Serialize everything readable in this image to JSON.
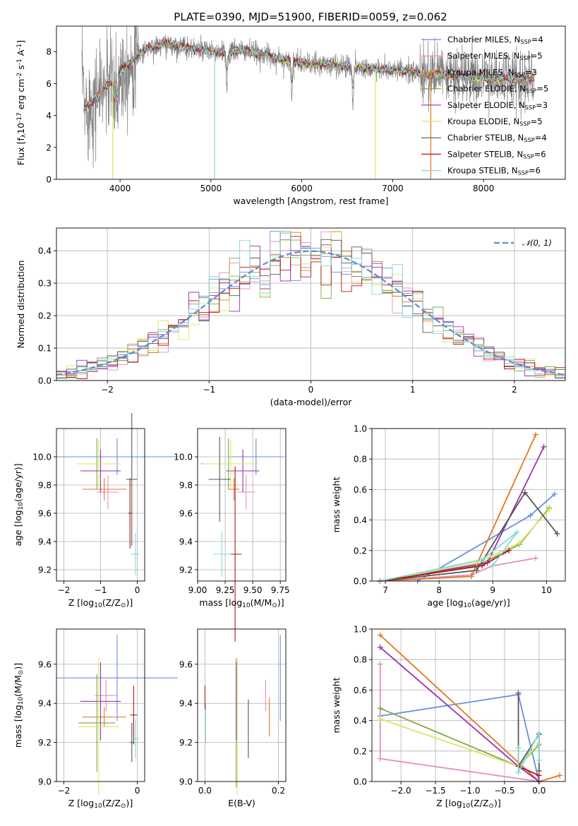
{
  "title": "PLATE=0390, MJD=51900, FIBERID=0059, z=0.062",
  "colors": {
    "Chabrier MILES": "#6a8fdc",
    "Salpeter MILES": "#e58cc0",
    "Kroupa MILES": "#e07820",
    "Chabrier ELODIE": "#7ea84a",
    "Salpeter ELODIE": "#9b30b0",
    "Kroupa ELODIE": "#d8e860",
    "Chabrier STELIB": "#555555",
    "Salpeter STELIB": "#b01818",
    "Kroupa STELIB": "#86d8d8"
  },
  "legend1": [
    "Chabrier MILES, N$_{SSP}$=4",
    "Salpeter MILES, N$_{SSP}$=5",
    "Kroupa MILES, N$_{SSP}$=3",
    "Chabrier ELODIE, N$_{SSP}$=5",
    "Salpeter ELODIE, N$_{SSP}$=3",
    "Kroupa ELODIE, N$_{SSP}$=5",
    "Chabrier STELIB, N$_{SSP}$=4",
    "Salpeter STELIB, N$_{SSP}$=6",
    "Kroupa STELIB, N$_{SSP}$=6"
  ],
  "legend2": [
    "𝒩(0, 1)"
  ],
  "chart_data": [
    {
      "type": "line",
      "title": "PLATE=0390, MJD=51900, FIBERID=0059, z=0.062",
      "xlabel": "wavelength [Angstrom, rest frame]",
      "ylabel": "Flux [f$_\\lambda$10$^{-17}$ erg cm$^{-2}$ s$^{-1}$ A$^{-1}$]",
      "xlim": [
        3300,
        8900
      ],
      "ylim": [
        0,
        9.6
      ],
      "xticks": [
        4000,
        5000,
        6000,
        7000,
        8000
      ],
      "yticks": [
        0,
        2,
        4,
        6,
        8
      ],
      "grid": false,
      "legend": "top-right",
      "continuum": [
        [
          3600,
          4.4
        ],
        [
          3700,
          4.9
        ],
        [
          3800,
          5.6
        ],
        [
          3900,
          6.1
        ],
        [
          4000,
          6.7
        ],
        [
          4100,
          7.3
        ],
        [
          4200,
          7.8
        ],
        [
          4300,
          8.2
        ],
        [
          4400,
          8.3
        ],
        [
          4500,
          8.5
        ],
        [
          4600,
          8.4
        ],
        [
          4700,
          8.3
        ],
        [
          4800,
          8.2
        ],
        [
          4900,
          8.1
        ],
        [
          5000,
          8.0
        ],
        [
          5100,
          7.9
        ],
        [
          5200,
          7.9
        ],
        [
          5300,
          8.1
        ],
        [
          5400,
          8.0
        ],
        [
          5500,
          7.9
        ],
        [
          5600,
          7.8
        ],
        [
          5700,
          7.6
        ],
        [
          5800,
          7.5
        ],
        [
          5900,
          7.4
        ],
        [
          6000,
          7.3
        ],
        [
          6100,
          7.2
        ],
        [
          6200,
          7.2
        ],
        [
          6300,
          7.2
        ],
        [
          6400,
          7.1
        ],
        [
          6500,
          7.1
        ],
        [
          6600,
          7.0
        ],
        [
          6700,
          7.0
        ],
        [
          6800,
          6.9
        ],
        [
          6900,
          6.9
        ],
        [
          7000,
          6.8
        ],
        [
          7100,
          6.8
        ],
        [
          7200,
          6.7
        ],
        [
          7300,
          6.7
        ],
        [
          7400,
          6.6
        ],
        [
          7500,
          6.6
        ],
        [
          7600,
          6.5
        ],
        [
          7700,
          6.5
        ],
        [
          7800,
          6.5
        ],
        [
          7900,
          6.4
        ],
        [
          8000,
          6.4
        ],
        [
          8100,
          6.3
        ],
        [
          8200,
          6.3
        ],
        [
          8300,
          6.3
        ],
        [
          8400,
          6.3
        ],
        [
          8500,
          6.3
        ]
      ],
      "absorption_lines": [
        3934,
        3969,
        5175,
        5890,
        6563
      ]
    },
    {
      "type": "bar",
      "xlabel": "(data-model)/error",
      "ylabel": "Normed distribution",
      "xlim": [
        -2.5,
        2.5
      ],
      "ylim": [
        0,
        0.47
      ],
      "xticks": [
        -2,
        -1,
        0,
        1,
        2
      ],
      "yticks": [
        0.0,
        0.1,
        0.2,
        0.3,
        0.4
      ],
      "grid": true,
      "legend": "top-right",
      "bin_width": 0.1,
      "reference": {
        "name": "𝒩(0, 1)",
        "mean": 0,
        "sigma": 1
      }
    },
    {
      "type": "scatter",
      "xlabel": "Z [log$_{10}$(Z/Z$_\\odot$)]",
      "ylabel": "age  [log$_{10}$(age/yr)]",
      "xlim": [
        -2.2,
        0.2
      ],
      "ylim": [
        9.12,
        10.2
      ],
      "xticks": [
        -2,
        -1,
        0
      ],
      "yticks": [
        9.2,
        9.4,
        9.6,
        9.8,
        10.0
      ],
      "grid": true,
      "points": [
        {
          "model": "Chabrier MILES",
          "x": -0.55,
          "y": 10.0,
          "xerr": 1.65,
          "yerr": 0.13
        },
        {
          "model": "Salpeter MILES",
          "x": -0.8,
          "y": 9.75,
          "xerr": 0.3,
          "yerr": 0.12
        },
        {
          "model": "Kroupa MILES",
          "x": -0.9,
          "y": 9.77,
          "xerr": 0.6,
          "yerr": 0.08
        },
        {
          "model": "Chabrier ELODIE",
          "x": -1.1,
          "y": 9.95,
          "xerr": 0.5,
          "yerr": 0.18
        },
        {
          "model": "Salpeter ELODIE",
          "x": -1.0,
          "y": 9.9,
          "xerr": 0.55,
          "yerr": 0.15
        },
        {
          "model": "Kroupa ELODIE",
          "x": -1.05,
          "y": 9.95,
          "xerr": 0.6,
          "yerr": 0.17
        },
        {
          "model": "Chabrier STELIB",
          "x": -0.15,
          "y": 9.84,
          "xerr": 0.15,
          "yerr": 0.47
        },
        {
          "model": "Salpeter STELIB",
          "x": -0.2,
          "y": 9.6,
          "xerr": 0.05,
          "yerr": 0.25
        },
        {
          "model": "Kroupa STELIB",
          "x": -0.05,
          "y": 9.31,
          "xerr": 0.12,
          "yerr": 0.15
        }
      ]
    },
    {
      "type": "scatter",
      "xlabel": "mass [log$_{10}$(M/M$_\\odot$)]",
      "ylabel": "",
      "xlim": [
        9.0,
        9.8
      ],
      "ylim": [
        9.12,
        10.2
      ],
      "xticks": [
        9.0,
        9.25,
        9.5,
        9.75
      ],
      "yticks": [
        9.2,
        9.4,
        9.6,
        9.8,
        10.0
      ],
      "grid": true,
      "points": [
        {
          "model": "Chabrier MILES",
          "x": 9.53,
          "y": 10.0,
          "xerr": 0.25,
          "yerr": 0.13
        },
        {
          "model": "Salpeter MILES",
          "x": 9.44,
          "y": 9.75,
          "xerr": 0.08,
          "yerr": 0.12
        },
        {
          "model": "Kroupa MILES",
          "x": 9.33,
          "y": 9.77,
          "xerr": 0.05,
          "yerr": 0.08
        },
        {
          "model": "Chabrier ELODIE",
          "x": 9.28,
          "y": 9.95,
          "xerr": 0.25,
          "yerr": 0.18
        },
        {
          "model": "Salpeter ELODIE",
          "x": 9.41,
          "y": 9.9,
          "xerr": 0.15,
          "yerr": 0.15
        },
        {
          "model": "Kroupa ELODIE",
          "x": 9.3,
          "y": 9.95,
          "xerr": 0.25,
          "yerr": 0.17
        },
        {
          "model": "Chabrier STELIB",
          "x": 9.2,
          "y": 9.84,
          "xerr": 0.1,
          "yerr": 0.3
        },
        {
          "model": "Salpeter STELIB",
          "x": 9.34,
          "y": 9.31,
          "xerr": 0.06,
          "yerr": 0.62
        },
        {
          "model": "Kroupa STELIB",
          "x": 9.22,
          "y": 9.31,
          "xerr": 0.08,
          "yerr": 0.16
        }
      ]
    },
    {
      "type": "line",
      "xlabel": "age  [log$_{10}$(age/yr)]",
      "ylabel": "mass weight",
      "xlim": [
        6.75,
        10.35
      ],
      "ylim": [
        0,
        1.0
      ],
      "xticks": [
        7,
        8,
        9,
        10
      ],
      "yticks": [
        0.0,
        0.2,
        0.4,
        0.6,
        0.8,
        1.0
      ],
      "grid": true,
      "series": [
        {
          "model": "Chabrier MILES",
          "x": [
            7.6,
            9.7,
            10.15
          ],
          "y": [
            0.0,
            0.43,
            0.57
          ]
        },
        {
          "model": "Salpeter MILES",
          "x": [
            6.9,
            8.6,
            9.0,
            9.8
          ],
          "y": [
            0.0,
            0.04,
            0.1,
            0.15
          ]
        },
        {
          "model": "Kroupa MILES",
          "x": [
            6.9,
            8.6,
            9.8
          ],
          "y": [
            0.0,
            0.03,
            0.96
          ]
        },
        {
          "model": "Chabrier ELODIE",
          "x": [
            6.9,
            8.7,
            9.5,
            10.05
          ],
          "y": [
            0.0,
            0.1,
            0.24,
            0.48
          ]
        },
        {
          "model": "Salpeter ELODIE",
          "x": [
            6.9,
            8.9,
            9.95
          ],
          "y": [
            0.0,
            0.12,
            0.88
          ]
        },
        {
          "model": "Kroupa ELODIE",
          "x": [
            6.9,
            8.7,
            9.5,
            10.05
          ],
          "y": [
            0.0,
            0.12,
            0.25,
            0.47
          ]
        },
        {
          "model": "Chabrier STELIB",
          "x": [
            6.9,
            8.7,
            9.6,
            10.2
          ],
          "y": [
            0.0,
            0.07,
            0.58,
            0.31
          ]
        },
        {
          "model": "Salpeter STELIB",
          "x": [
            6.9,
            8.8,
            9.3
          ],
          "y": [
            0.0,
            0.1,
            0.2
          ]
        },
        {
          "model": "Kroupa STELIB",
          "x": [
            6.9,
            8.8,
            9.45,
            9.0
          ],
          "y": [
            0.0,
            0.14,
            0.32,
            0.1
          ]
        }
      ]
    },
    {
      "type": "scatter",
      "xlabel": "Z [log$_{10}$(Z/Z$_\\odot$)]",
      "ylabel": "mass [log$_{10}$(M/M$_\\odot$)]",
      "xlim": [
        -2.2,
        0.2
      ],
      "ylim": [
        9.0,
        9.78
      ],
      "xticks": [
        -2,
        0
      ],
      "yticks": [
        9.0,
        9.2,
        9.4,
        9.6
      ],
      "grid": true,
      "points": [
        {
          "model": "Chabrier MILES",
          "x": -0.55,
          "y": 9.53,
          "xerr": 1.65,
          "yerr": 0.22
        },
        {
          "model": "Salpeter MILES",
          "x": -0.85,
          "y": 9.44,
          "xerr": 0.3,
          "yerr": 0.08
        },
        {
          "model": "Kroupa MILES",
          "x": -0.9,
          "y": 9.33,
          "xerr": 0.6,
          "yerr": 0.05
        },
        {
          "model": "Chabrier ELODIE",
          "x": -1.1,
          "y": 9.3,
          "xerr": 0.5,
          "yerr": 0.25
        },
        {
          "model": "Salpeter ELODIE",
          "x": -1.0,
          "y": 9.41,
          "xerr": 0.55,
          "yerr": 0.2
        },
        {
          "model": "Kroupa ELODIE",
          "x": -1.05,
          "y": 9.28,
          "xerr": 0.55,
          "yerr": 0.35
        },
        {
          "model": "Chabrier STELIB",
          "x": -0.15,
          "y": 9.2,
          "xerr": 0.05,
          "yerr": 0.1
        },
        {
          "model": "Salpeter STELIB",
          "x": -0.1,
          "y": 9.34,
          "xerr": 0.1,
          "yerr": 0.15
        },
        {
          "model": "Kroupa STELIB",
          "x": -0.05,
          "y": 9.22,
          "xerr": 0.1,
          "yerr": 0.1
        }
      ]
    },
    {
      "type": "scatter",
      "xlabel": "E(B-V)",
      "ylabel": "",
      "xlim": [
        -0.02,
        0.22
      ],
      "ylim": [
        9.0,
        9.78
      ],
      "xticks": [
        0.0,
        0.2
      ],
      "yticks": [
        9.0,
        9.2,
        9.4,
        9.6
      ],
      "grid": true,
      "points": [
        {
          "model": "Chabrier MILES",
          "x": 0.205,
          "y": 9.53,
          "yerr": 0.22
        },
        {
          "model": "Salpeter MILES",
          "x": 0.165,
          "y": 9.44,
          "yerr": 0.08
        },
        {
          "model": "Kroupa MILES",
          "x": 0.175,
          "y": 9.33,
          "yerr": 0.1
        },
        {
          "model": "Chabrier ELODIE",
          "x": 0.085,
          "y": 9.3,
          "yerr": 0.33
        },
        {
          "model": "Salpeter ELODIE",
          "x": 0.085,
          "y": 9.41,
          "yerr": 0.2
        },
        {
          "model": "Kroupa ELODIE",
          "x": 0.088,
          "y": 9.28,
          "yerr": 0.35
        },
        {
          "model": "Chabrier STELIB",
          "x": 0.118,
          "y": 9.27,
          "yerr": 0.15
        },
        {
          "model": "Salpeter STELIB",
          "x": 0.0,
          "y": 9.43,
          "yerr": 0.06
        },
        {
          "model": "Kroupa STELIB",
          "x": 0.002,
          "y": 9.3,
          "yerr": 0.1
        }
      ]
    },
    {
      "type": "line",
      "xlabel": "Z [log$_{10}$(Z/Z$_\\odot$)]",
      "ylabel": "mass weight",
      "xlim": [
        -2.42,
        0.38
      ],
      "ylim": [
        0,
        1.0
      ],
      "xticks": [
        -2.0,
        -1.5,
        -1.0,
        -0.5,
        0.0
      ],
      "yticks": [
        0.0,
        0.2,
        0.4,
        0.6,
        0.8,
        1.0
      ],
      "grid": true,
      "series": [
        {
          "model": "Chabrier MILES",
          "x": [
            -2.3,
            -0.3,
            0.0
          ],
          "y": [
            0.43,
            0.57,
            0.0
          ]
        },
        {
          "model": "Salpeter MILES",
          "x": [
            -2.3,
            -2.3,
            0.0
          ],
          "y": [
            0.77,
            0.15,
            0.0
          ]
        },
        {
          "model": "Kroupa MILES",
          "x": [
            -2.3,
            0.0,
            0.3
          ],
          "y": [
            0.96,
            0.0,
            0.04
          ]
        },
        {
          "model": "Chabrier ELODIE",
          "x": [
            -2.3,
            -0.3,
            0.0
          ],
          "y": [
            0.48,
            0.1,
            0.24
          ]
        },
        {
          "model": "Salpeter ELODIE",
          "x": [
            -2.3,
            -0.3,
            0.0
          ],
          "y": [
            0.88,
            0.1,
            0.0
          ]
        },
        {
          "model": "Kroupa ELODIE",
          "x": [
            -2.3,
            -0.3,
            0.0
          ],
          "y": [
            0.41,
            0.1,
            0.25
          ]
        },
        {
          "model": "Chabrier STELIB",
          "x": [
            -0.3,
            -0.3,
            0.0,
            0.0
          ],
          "y": [
            0.58,
            0.1,
            0.31,
            0.07
          ]
        },
        {
          "model": "Salpeter STELIB",
          "x": [
            -0.3,
            0.0
          ],
          "y": [
            0.1,
            0.04
          ]
        },
        {
          "model": "Kroupa STELIB",
          "x": [
            -0.3,
            -0.3,
            0.0,
            0.0
          ],
          "y": [
            0.22,
            0.06,
            0.32,
            0.14
          ]
        }
      ]
    }
  ]
}
